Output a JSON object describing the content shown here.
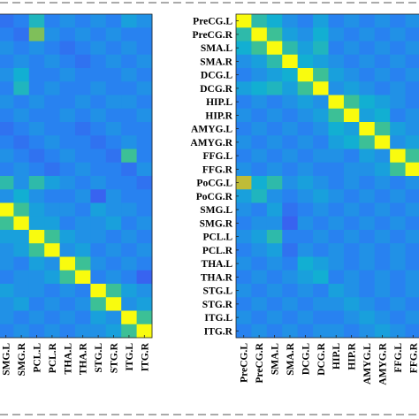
{
  "chart_data": [
    {
      "type": "heatmap",
      "title": "",
      "colormap": "parula",
      "value_range": [
        0,
        1
      ],
      "row_labels": [],
      "col_labels": [
        "SMG.L",
        "SMG.R",
        "PCL.L",
        "PCL.R",
        "THA.L",
        "THA.R",
        "STG.L",
        "STG.R",
        "ITG.L",
        "ITG.R"
      ],
      "note_values": "estimated normalized intensities; rows correspond to the 24 regions listed in the right matrix",
      "values": [
        [
          0.25,
          0.3,
          0.5,
          0.3,
          0.35,
          0.3,
          0.35,
          0.3,
          0.4,
          0.35
        ],
        [
          0.3,
          0.25,
          0.7,
          0.35,
          0.3,
          0.35,
          0.3,
          0.35,
          0.3,
          0.3
        ],
        [
          0.35,
          0.3,
          0.35,
          0.3,
          0.25,
          0.3,
          0.35,
          0.3,
          0.35,
          0.3
        ],
        [
          0.3,
          0.35,
          0.3,
          0.35,
          0.3,
          0.25,
          0.3,
          0.35,
          0.3,
          0.35
        ],
        [
          0.35,
          0.45,
          0.3,
          0.3,
          0.35,
          0.3,
          0.3,
          0.3,
          0.35,
          0.3
        ],
        [
          0.3,
          0.5,
          0.3,
          0.35,
          0.3,
          0.3,
          0.35,
          0.3,
          0.3,
          0.35
        ],
        [
          0.35,
          0.3,
          0.35,
          0.3,
          0.3,
          0.35,
          0.3,
          0.35,
          0.35,
          0.3
        ],
        [
          0.3,
          0.35,
          0.3,
          0.3,
          0.35,
          0.3,
          0.35,
          0.3,
          0.3,
          0.35
        ],
        [
          0.25,
          0.3,
          0.35,
          0.3,
          0.3,
          0.25,
          0.3,
          0.35,
          0.3,
          0.3
        ],
        [
          0.3,
          0.25,
          0.3,
          0.35,
          0.3,
          0.3,
          0.25,
          0.3,
          0.35,
          0.3
        ],
        [
          0.35,
          0.3,
          0.25,
          0.3,
          0.35,
          0.3,
          0.3,
          0.25,
          0.6,
          0.3
        ],
        [
          0.3,
          0.35,
          0.3,
          0.25,
          0.3,
          0.35,
          0.3,
          0.3,
          0.25,
          0.35
        ],
        [
          0.55,
          0.35,
          0.55,
          0.4,
          0.35,
          0.3,
          0.35,
          0.3,
          0.3,
          0.25
        ],
        [
          0.35,
          0.45,
          0.35,
          0.3,
          0.3,
          0.35,
          0.2,
          0.35,
          0.3,
          0.3
        ],
        [
          1.0,
          0.6,
          0.4,
          0.35,
          0.35,
          0.3,
          0.4,
          0.35,
          0.35,
          0.3
        ],
        [
          0.6,
          1.0,
          0.4,
          0.4,
          0.3,
          0.35,
          0.35,
          0.4,
          0.3,
          0.35
        ],
        [
          0.4,
          0.4,
          1.0,
          0.6,
          0.4,
          0.35,
          0.35,
          0.3,
          0.35,
          0.3
        ],
        [
          0.35,
          0.4,
          0.6,
          1.0,
          0.35,
          0.4,
          0.3,
          0.35,
          0.3,
          0.35
        ],
        [
          0.35,
          0.3,
          0.4,
          0.35,
          1.0,
          0.6,
          0.35,
          0.3,
          0.35,
          0.3
        ],
        [
          0.3,
          0.35,
          0.35,
          0.4,
          0.6,
          1.0,
          0.3,
          0.35,
          0.3,
          0.2
        ],
        [
          0.4,
          0.35,
          0.35,
          0.3,
          0.35,
          0.3,
          1.0,
          0.6,
          0.4,
          0.35
        ],
        [
          0.35,
          0.4,
          0.3,
          0.35,
          0.3,
          0.35,
          0.6,
          1.0,
          0.35,
          0.4
        ],
        [
          0.35,
          0.3,
          0.35,
          0.3,
          0.35,
          0.3,
          0.4,
          0.35,
          1.0,
          0.6
        ],
        [
          0.3,
          0.35,
          0.3,
          0.35,
          0.3,
          0.35,
          0.35,
          0.4,
          0.6,
          1.0
        ]
      ]
    },
    {
      "type": "heatmap",
      "title": "",
      "colormap": "parula",
      "value_range": [
        0,
        1
      ],
      "row_labels": [
        "PreCG.L",
        "PreCG.R",
        "SMA.L",
        "SMA.R",
        "DCG.L",
        "DCG.R",
        "HIP.L",
        "HIP.R",
        "AMYG.L",
        "AMYG.R",
        "FFG.L",
        "FFG.R",
        "PoCG.L",
        "PoCG.R",
        "SMG.L",
        "SMG.R",
        "PCL.L",
        "PCL.R",
        "THA.L",
        "THA.R",
        "STG.L",
        "STG.R",
        "ITG.L",
        "ITG.R"
      ],
      "col_labels": [
        "PreCG.L",
        "PreCG.R",
        "SMA.L",
        "SMA.R",
        "DCG.L",
        "DCG.R",
        "HIP.L",
        "HIP.R",
        "AMYG.L",
        "AMYG.R",
        "FFG.L",
        "FFG.R"
      ],
      "note_values": "estimated normalized intensities; diagonal (self) = 1",
      "values": [
        [
          1.0,
          0.55,
          0.45,
          0.35,
          0.3,
          0.4,
          0.3,
          0.35,
          0.3,
          0.35,
          0.3,
          0.35
        ],
        [
          0.55,
          1.0,
          0.6,
          0.4,
          0.35,
          0.45,
          0.35,
          0.3,
          0.35,
          0.3,
          0.35,
          0.3
        ],
        [
          0.45,
          0.6,
          1.0,
          0.55,
          0.4,
          0.5,
          0.3,
          0.35,
          0.3,
          0.35,
          0.3,
          0.35
        ],
        [
          0.35,
          0.4,
          0.55,
          1.0,
          0.45,
          0.4,
          0.35,
          0.3,
          0.35,
          0.3,
          0.35,
          0.3
        ],
        [
          0.3,
          0.35,
          0.4,
          0.45,
          1.0,
          0.6,
          0.4,
          0.35,
          0.3,
          0.35,
          0.3,
          0.35
        ],
        [
          0.4,
          0.45,
          0.5,
          0.4,
          0.6,
          1.0,
          0.35,
          0.4,
          0.35,
          0.3,
          0.35,
          0.3
        ],
        [
          0.3,
          0.35,
          0.3,
          0.35,
          0.4,
          0.35,
          1.0,
          0.6,
          0.45,
          0.4,
          0.35,
          0.3
        ],
        [
          0.35,
          0.3,
          0.35,
          0.3,
          0.35,
          0.4,
          0.6,
          1.0,
          0.4,
          0.45,
          0.3,
          0.35
        ],
        [
          0.3,
          0.35,
          0.3,
          0.35,
          0.3,
          0.35,
          0.45,
          0.4,
          1.0,
          0.6,
          0.4,
          0.35
        ],
        [
          0.35,
          0.3,
          0.35,
          0.3,
          0.35,
          0.3,
          0.4,
          0.45,
          0.6,
          1.0,
          0.35,
          0.4
        ],
        [
          0.3,
          0.35,
          0.3,
          0.35,
          0.3,
          0.35,
          0.35,
          0.3,
          0.4,
          0.35,
          1.0,
          0.6
        ],
        [
          0.35,
          0.3,
          0.35,
          0.3,
          0.35,
          0.3,
          0.3,
          0.35,
          0.35,
          0.4,
          0.6,
          1.0
        ],
        [
          0.8,
          0.45,
          0.55,
          0.35,
          0.4,
          0.35,
          0.3,
          0.35,
          0.3,
          0.35,
          0.3,
          0.35
        ],
        [
          0.4,
          0.5,
          0.35,
          0.3,
          0.35,
          0.4,
          0.35,
          0.3,
          0.35,
          0.3,
          0.35,
          0.3
        ],
        [
          0.35,
          0.3,
          0.4,
          0.25,
          0.3,
          0.35,
          0.3,
          0.35,
          0.3,
          0.35,
          0.3,
          0.35
        ],
        [
          0.3,
          0.35,
          0.35,
          0.2,
          0.35,
          0.3,
          0.35,
          0.3,
          0.35,
          0.3,
          0.35,
          0.3
        ],
        [
          0.35,
          0.4,
          0.55,
          0.3,
          0.3,
          0.35,
          0.3,
          0.35,
          0.3,
          0.35,
          0.3,
          0.35
        ],
        [
          0.3,
          0.35,
          0.4,
          0.25,
          0.35,
          0.3,
          0.35,
          0.3,
          0.35,
          0.3,
          0.35,
          0.3
        ],
        [
          0.35,
          0.3,
          0.35,
          0.3,
          0.45,
          0.4,
          0.35,
          0.3,
          0.35,
          0.3,
          0.35,
          0.3
        ],
        [
          0.3,
          0.35,
          0.3,
          0.35,
          0.4,
          0.45,
          0.3,
          0.35,
          0.3,
          0.35,
          0.3,
          0.35
        ],
        [
          0.35,
          0.3,
          0.35,
          0.3,
          0.35,
          0.3,
          0.4,
          0.35,
          0.3,
          0.35,
          0.3,
          0.35
        ],
        [
          0.3,
          0.35,
          0.3,
          0.35,
          0.3,
          0.35,
          0.35,
          0.4,
          0.35,
          0.3,
          0.35,
          0.3
        ],
        [
          0.35,
          0.3,
          0.35,
          0.3,
          0.35,
          0.3,
          0.3,
          0.35,
          0.4,
          0.35,
          0.3,
          0.35
        ],
        [
          0.3,
          0.35,
          0.3,
          0.35,
          0.3,
          0.35,
          0.35,
          0.3,
          0.35,
          0.4,
          0.35,
          0.3
        ]
      ]
    }
  ]
}
